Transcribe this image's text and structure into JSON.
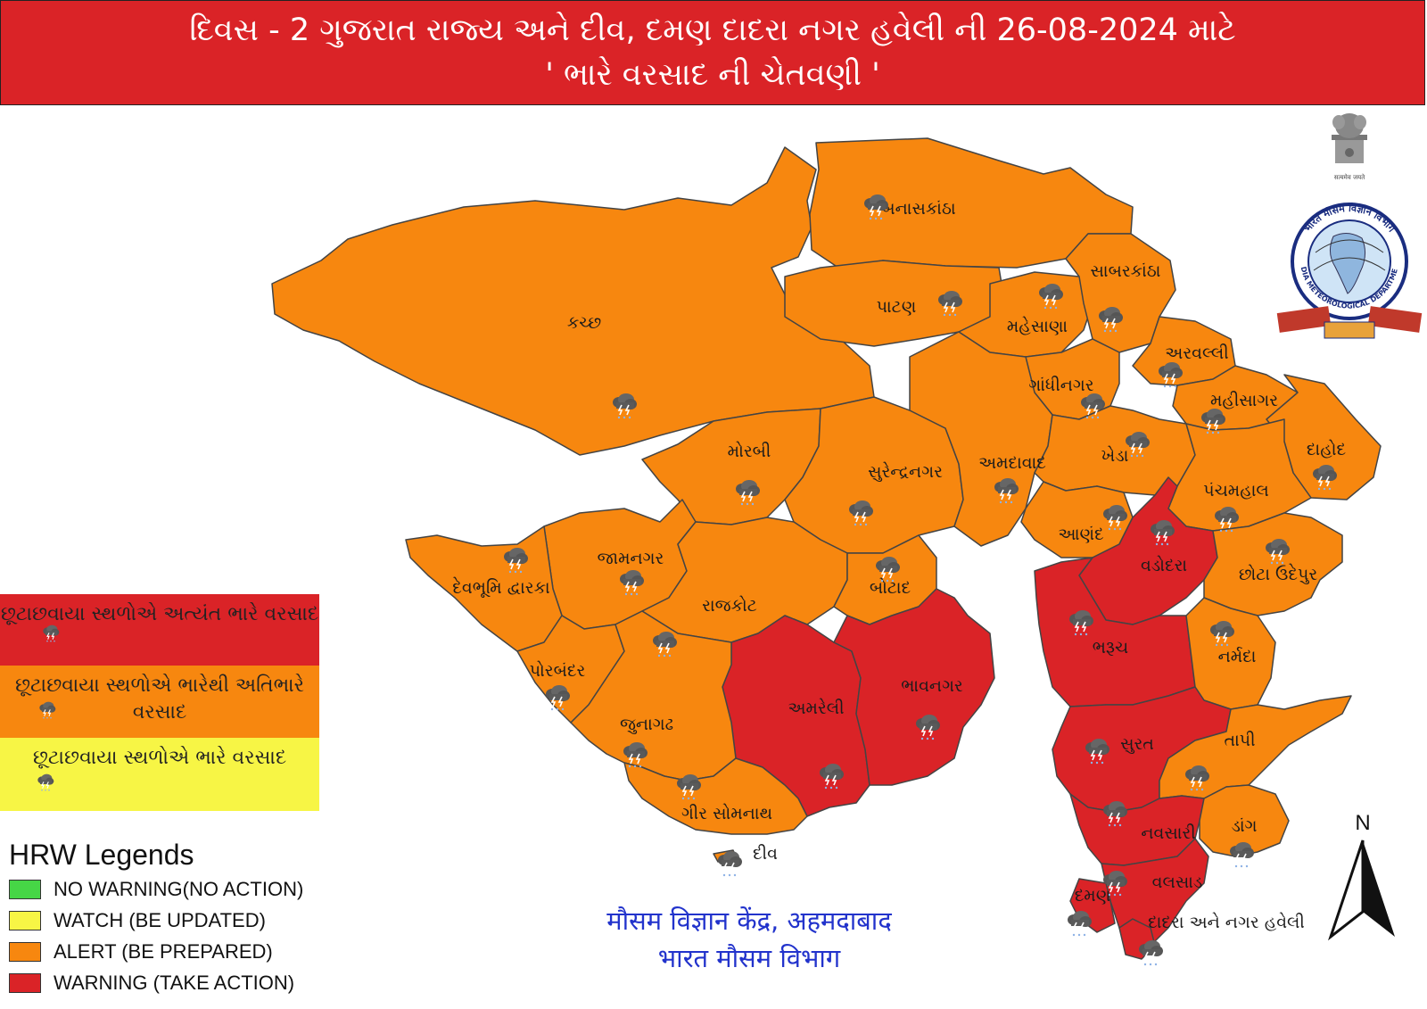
{
  "title": {
    "line1": "દિવસ - 2 ગુજરાત રાજ્ય અને દીવ, દમણ દાદરા નગર હવેલી ની  26-08-2024 માટે",
    "line2": "' ભારે વરસાદ ની ચેતવણી '"
  },
  "colors": {
    "warning": "#da2327",
    "alert": "#f7870f",
    "watch": "#f7f545",
    "no_warning": "#46d646",
    "border": "#444444"
  },
  "districts": [
    {
      "key": "kutch",
      "label": "કચ્છ",
      "category": "alert"
    },
    {
      "key": "banaskantha",
      "label": "બનાસકાંઠા",
      "category": "alert"
    },
    {
      "key": "patan",
      "label": "પાટણ",
      "category": "alert"
    },
    {
      "key": "mehsana",
      "label": "મહેસાણા",
      "category": "alert"
    },
    {
      "key": "sabarkantha",
      "label": "સાબરકાંઠા",
      "category": "alert"
    },
    {
      "key": "aravalli",
      "label": "અરવલ્લી",
      "category": "alert"
    },
    {
      "key": "gandhinagar",
      "label": "ગાંધીનગર",
      "category": "alert"
    },
    {
      "key": "mahisagar",
      "label": "મહીસાગર",
      "category": "alert"
    },
    {
      "key": "dahod",
      "label": "દાહોદ",
      "category": "alert"
    },
    {
      "key": "morbi",
      "label": "મોરબી",
      "category": "alert"
    },
    {
      "key": "surendranagar",
      "label": "સુરેન્દ્રનગર",
      "category": "alert"
    },
    {
      "key": "ahmedabad",
      "label": "અમદાવાદ",
      "category": "alert"
    },
    {
      "key": "kheda",
      "label": "ખેડા",
      "category": "alert"
    },
    {
      "key": "panchmahal",
      "label": "પંચમહાલ",
      "category": "alert"
    },
    {
      "key": "anand",
      "label": "આણંદ",
      "category": "alert"
    },
    {
      "key": "jamnagar",
      "label": "જામનગર",
      "category": "alert"
    },
    {
      "key": "devbhumi_dwarka",
      "label": "દેવભૂમિ દ્વારકા",
      "category": "alert"
    },
    {
      "key": "rajkot",
      "label": "રાજકોટ",
      "category": "alert"
    },
    {
      "key": "botad",
      "label": "બોટાદ",
      "category": "alert"
    },
    {
      "key": "vadodara",
      "label": "વડોદરા",
      "category": "warning"
    },
    {
      "key": "chhota_udepur",
      "label": "છોટા ઉદેપુર",
      "category": "alert"
    },
    {
      "key": "bharuch",
      "label": "ભરૂચ",
      "category": "warning"
    },
    {
      "key": "narmada",
      "label": "નર્મદા",
      "category": "alert"
    },
    {
      "key": "porbandar",
      "label": "પોરબંદર",
      "category": "alert"
    },
    {
      "key": "amreli",
      "label": "અમરેલી",
      "category": "warning"
    },
    {
      "key": "bhavnagar",
      "label": "ભાવનગર",
      "category": "warning"
    },
    {
      "key": "junagadh",
      "label": "જુનાગઢ",
      "category": "alert"
    },
    {
      "key": "surat",
      "label": "સુરત",
      "category": "warning"
    },
    {
      "key": "tapi",
      "label": "તાપી",
      "category": "alert"
    },
    {
      "key": "gir_somnath",
      "label": "ગીર સોમનાથ",
      "category": "alert"
    },
    {
      "key": "navsari",
      "label": "નવસારી",
      "category": "warning"
    },
    {
      "key": "dang",
      "label": "ડાંગ",
      "category": "alert"
    },
    {
      "key": "diu",
      "label": "દીવ",
      "category": "alert"
    },
    {
      "key": "valsad",
      "label": "વલસાડ",
      "category": "warning"
    },
    {
      "key": "daman",
      "label": "દમણ",
      "category": "warning"
    },
    {
      "key": "dnh",
      "label": "દાદરા અને નગર હવેલી",
      "category": "warning"
    }
  ],
  "rain_legend": [
    {
      "text": "છૂટાછવાયા સ્થળોએ અત્યંત ભારે વરસાદ",
      "color": "#da2327"
    },
    {
      "text": "છૂટાછવાયા સ્થળોએ ભારેથી અતિભારે વરસાદ",
      "color": "#f7870f"
    },
    {
      "text": "છૂટાછવાયા સ્થળોએ ભારે વરસાદ",
      "color": "#f7f545"
    }
  ],
  "hrw_legend": {
    "title": "HRW Legends",
    "items": [
      {
        "label": "NO WARNING(NO ACTION)",
        "color": "#46d646"
      },
      {
        "label": "WATCH (BE UPDATED)",
        "color": "#f7f545"
      },
      {
        "label": "ALERT (BE PREPARED)",
        "color": "#f7870f"
      },
      {
        "label": "WARNING (TAKE ACTION)",
        "color": "#da2327"
      }
    ]
  },
  "footer": {
    "line1": "मौसम विज्ञान केंद्र, अहमदाबाद",
    "line2": "भारत मौसम विभाग"
  },
  "logo": {
    "top_text": "भारत मौसम विज्ञान विभाग",
    "bottom_text": "INDIA METEOROLOGICAL DEPARTMENT",
    "motto": "सत्यमेव जयते"
  },
  "north_label": "N",
  "icons": {
    "rain": "thunderstorm-rain-icon",
    "north": "north-arrow-icon",
    "logo": "imd-logo-icon"
  }
}
